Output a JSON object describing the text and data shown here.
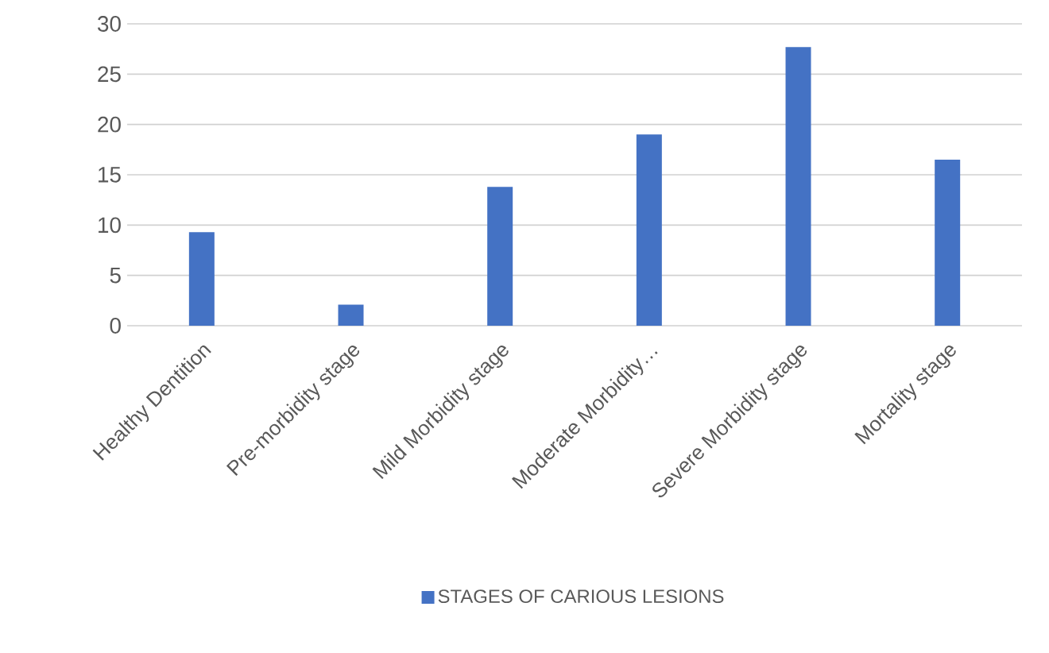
{
  "chart_data": {
    "type": "bar",
    "categories": [
      "Healthy Dentition",
      "Pre-morbidity stage",
      "Mild Morbidity stage",
      "Moderate Morbidity…",
      "Severe Morbidity stage",
      "Mortality stage"
    ],
    "series": [
      {
        "name": "STAGES OF CARIOUS LESIONS",
        "color": "#4472c4",
        "values": [
          9.3,
          2.1,
          13.8,
          19.0,
          27.7,
          16.5
        ]
      }
    ],
    "ylim": [
      0,
      30
    ],
    "yticks": [
      0,
      5,
      10,
      15,
      20,
      25,
      30
    ],
    "grid": "y",
    "legend": "bottom"
  }
}
